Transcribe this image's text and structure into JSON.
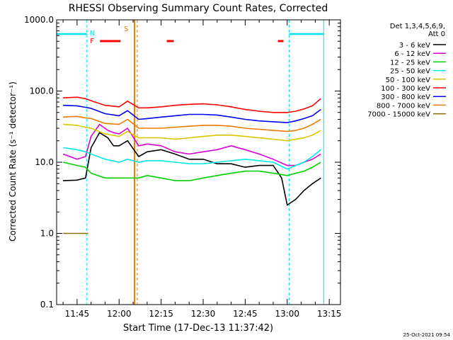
{
  "chart_data": {
    "type": "line",
    "title": "RHESSI Observing Summary Count Rates, Corrected",
    "xlabel": "Start Time (17-Dec-13 11:37:42)",
    "ylabel": "Corrected Count Rate (s⁻¹ detector⁻¹)",
    "y_scale": "log",
    "ylim": [
      0.1,
      1000.0
    ],
    "y_ticks": [
      "1000.0",
      "100.0",
      "10.0",
      "1.0",
      "0.1"
    ],
    "xlim": [
      "11:37:42",
      "13:19:00"
    ],
    "x_ticks": [
      "11:45",
      "12:00",
      "12:15",
      "12:30",
      "12:45",
      "13:00",
      "13:15"
    ],
    "detector_info": [
      "Det 1,3,4,5,6,9,",
      "Att 0"
    ],
    "footer_date": "25-Oct-2021 09:54",
    "markers": {
      "N_label": "N",
      "F_label": "F",
      "S_label": "S",
      "night_color": "#00e5ee",
      "flare_color": "#ff0000",
      "saa_color": "#ee7a00"
    },
    "events": {
      "night_periods": [
        [
          "11:37:42",
          "11:48:30"
        ],
        [
          "13:00:40",
          "13:13:00"
        ]
      ],
      "flare_segments": [
        [
          "11:53:10",
          "12:00:30"
        ],
        [
          "12:17:00",
          "12:19:30"
        ],
        [
          "12:56:40",
          "12:58:40"
        ]
      ],
      "saa_period": [
        "12:05:30",
        "12:06:30"
      ]
    },
    "series": [
      {
        "name": "3 - 6 keV",
        "color": "#000000",
        "points": [
          [
            "11:40",
            5.5
          ],
          [
            "11:45",
            5.6
          ],
          [
            "11:48",
            6.0
          ],
          [
            "11:50",
            16
          ],
          [
            "11:53",
            26
          ],
          [
            "11:56",
            22
          ],
          [
            "11:58",
            17
          ],
          [
            "12:00",
            17
          ],
          [
            "12:03",
            20
          ],
          [
            "12:07",
            12
          ],
          [
            "12:10",
            14
          ],
          [
            "12:15",
            15
          ],
          [
            "12:20",
            13
          ],
          [
            "12:25",
            11
          ],
          [
            "12:30",
            11
          ],
          [
            "12:35",
            9.5
          ],
          [
            "12:40",
            9.5
          ],
          [
            "12:45",
            8.5
          ],
          [
            "12:50",
            9
          ],
          [
            "12:55",
            9
          ],
          [
            "12:58",
            6
          ],
          [
            "13:00",
            2.5
          ],
          [
            "13:03",
            3
          ],
          [
            "13:06",
            4
          ],
          [
            "13:09",
            5
          ],
          [
            "13:12",
            6
          ]
        ]
      },
      {
        "name": "6 - 12 keV",
        "color": "#d800d8",
        "points": [
          [
            "11:40",
            13
          ],
          [
            "11:45",
            11
          ],
          [
            "11:48",
            12
          ],
          [
            "11:50",
            23
          ],
          [
            "11:53",
            34
          ],
          [
            "11:56",
            28
          ],
          [
            "11:58",
            26
          ],
          [
            "12:00",
            25
          ],
          [
            "12:03",
            30
          ],
          [
            "12:07",
            17
          ],
          [
            "12:10",
            18
          ],
          [
            "12:15",
            17
          ],
          [
            "12:20",
            14
          ],
          [
            "12:25",
            13
          ],
          [
            "12:30",
            14
          ],
          [
            "12:35",
            15
          ],
          [
            "12:40",
            17
          ],
          [
            "12:45",
            15
          ],
          [
            "12:50",
            13
          ],
          [
            "12:55",
            11
          ],
          [
            "13:00",
            9
          ],
          [
            "13:03",
            9
          ],
          [
            "13:06",
            10
          ],
          [
            "13:09",
            11
          ],
          [
            "13:12",
            13
          ]
        ]
      },
      {
        "name": "12 - 25 keV",
        "color": "#00d000",
        "points": [
          [
            "11:40",
            10
          ],
          [
            "11:45",
            9
          ],
          [
            "11:48",
            8.5
          ],
          [
            "11:50",
            7
          ],
          [
            "11:55",
            6
          ],
          [
            "12:00",
            6
          ],
          [
            "12:03",
            6
          ],
          [
            "12:07",
            6
          ],
          [
            "12:10",
            6.5
          ],
          [
            "12:15",
            6
          ],
          [
            "12:20",
            5.5
          ],
          [
            "12:25",
            5.5
          ],
          [
            "12:30",
            6
          ],
          [
            "12:35",
            6.5
          ],
          [
            "12:40",
            7
          ],
          [
            "12:45",
            7.5
          ],
          [
            "12:50",
            7.5
          ],
          [
            "12:55",
            7
          ],
          [
            "13:00",
            6.5
          ],
          [
            "13:03",
            7
          ],
          [
            "13:06",
            7.5
          ],
          [
            "13:09",
            8.5
          ],
          [
            "13:12",
            10
          ]
        ]
      },
      {
        "name": "25 - 50 keV",
        "color": "#00e8e8",
        "points": [
          [
            "11:40",
            16
          ],
          [
            "11:45",
            15
          ],
          [
            "11:48",
            14
          ],
          [
            "11:50",
            13
          ],
          [
            "11:55",
            11
          ],
          [
            "12:00",
            10
          ],
          [
            "12:03",
            11
          ],
          [
            "12:07",
            10
          ],
          [
            "12:10",
            10.5
          ],
          [
            "12:15",
            10.5
          ],
          [
            "12:20",
            10
          ],
          [
            "12:25",
            9.5
          ],
          [
            "12:30",
            9.5
          ],
          [
            "12:35",
            10
          ],
          [
            "12:40",
            10.5
          ],
          [
            "12:45",
            11
          ],
          [
            "12:50",
            10.5
          ],
          [
            "12:55",
            10
          ],
          [
            "13:00",
            8
          ],
          [
            "13:03",
            9
          ],
          [
            "13:06",
            10
          ],
          [
            "13:09",
            12
          ],
          [
            "13:12",
            15
          ]
        ]
      },
      {
        "name": "50 - 100 keV",
        "color": "#d8c800",
        "points": [
          [
            "11:40",
            34
          ],
          [
            "11:45",
            33
          ],
          [
            "11:48",
            31
          ],
          [
            "11:50",
            30
          ],
          [
            "11:55",
            25
          ],
          [
            "12:00",
            23
          ],
          [
            "12:03",
            27
          ],
          [
            "12:07",
            22
          ],
          [
            "12:10",
            22
          ],
          [
            "12:15",
            22
          ],
          [
            "12:20",
            21
          ],
          [
            "12:25",
            22
          ],
          [
            "12:30",
            23
          ],
          [
            "12:35",
            24
          ],
          [
            "12:40",
            24
          ],
          [
            "12:45",
            23
          ],
          [
            "12:50",
            22
          ],
          [
            "12:55",
            21
          ],
          [
            "13:00",
            20
          ],
          [
            "13:03",
            21
          ],
          [
            "13:06",
            22
          ],
          [
            "13:09",
            24
          ],
          [
            "13:12",
            28
          ]
        ]
      },
      {
        "name": "100 - 300 keV",
        "color": "#ff0000",
        "points": [
          [
            "11:40",
            80
          ],
          [
            "11:45",
            82
          ],
          [
            "11:48",
            78
          ],
          [
            "11:50",
            73
          ],
          [
            "11:55",
            63
          ],
          [
            "12:00",
            60
          ],
          [
            "12:03",
            72
          ],
          [
            "12:07",
            58
          ],
          [
            "12:10",
            58
          ],
          [
            "12:15",
            60
          ],
          [
            "12:20",
            63
          ],
          [
            "12:25",
            65
          ],
          [
            "12:30",
            66
          ],
          [
            "12:35",
            64
          ],
          [
            "12:40",
            60
          ],
          [
            "12:45",
            55
          ],
          [
            "12:50",
            52
          ],
          [
            "12:55",
            50
          ],
          [
            "13:00",
            50
          ],
          [
            "13:03",
            52
          ],
          [
            "13:06",
            56
          ],
          [
            "13:09",
            62
          ],
          [
            "13:12",
            78
          ]
        ]
      },
      {
        "name": "300 - 800 keV",
        "color": "#0000ee",
        "points": [
          [
            "11:40",
            63
          ],
          [
            "11:45",
            62
          ],
          [
            "11:48",
            59
          ],
          [
            "11:50",
            57
          ],
          [
            "11:55",
            48
          ],
          [
            "12:00",
            45
          ],
          [
            "12:03",
            53
          ],
          [
            "12:07",
            40
          ],
          [
            "12:10",
            41
          ],
          [
            "12:15",
            43
          ],
          [
            "12:20",
            45
          ],
          [
            "12:25",
            47
          ],
          [
            "12:30",
            47
          ],
          [
            "12:35",
            46
          ],
          [
            "12:40",
            43
          ],
          [
            "12:45",
            40
          ],
          [
            "12:50",
            38
          ],
          [
            "12:55",
            37
          ],
          [
            "13:00",
            36
          ],
          [
            "13:03",
            38
          ],
          [
            "13:06",
            41
          ],
          [
            "13:09",
            45
          ],
          [
            "13:12",
            55
          ]
        ]
      },
      {
        "name": "800 - 7000 keV",
        "color": "#ee7a00",
        "points": [
          [
            "11:40",
            43
          ],
          [
            "11:45",
            44
          ],
          [
            "11:48",
            42
          ],
          [
            "11:50",
            41
          ],
          [
            "11:55",
            35
          ],
          [
            "12:00",
            34
          ],
          [
            "12:03",
            40
          ],
          [
            "12:07",
            30
          ],
          [
            "12:10",
            30
          ],
          [
            "12:15",
            30
          ],
          [
            "12:20",
            31
          ],
          [
            "12:25",
            32
          ],
          [
            "12:30",
            33
          ],
          [
            "12:35",
            33
          ],
          [
            "12:40",
            32
          ],
          [
            "12:45",
            30
          ],
          [
            "12:50",
            29
          ],
          [
            "12:55",
            28
          ],
          [
            "13:00",
            27
          ],
          [
            "13:03",
            28
          ],
          [
            "13:06",
            30
          ],
          [
            "13:09",
            34
          ],
          [
            "13:12",
            40
          ]
        ]
      },
      {
        "name": "7000 - 15000 keV",
        "color": "#8a7000",
        "points": [
          [
            "11:40",
            1.0
          ],
          [
            "11:45",
            1.0
          ],
          [
            "11:49",
            1.0
          ]
        ]
      }
    ]
  }
}
